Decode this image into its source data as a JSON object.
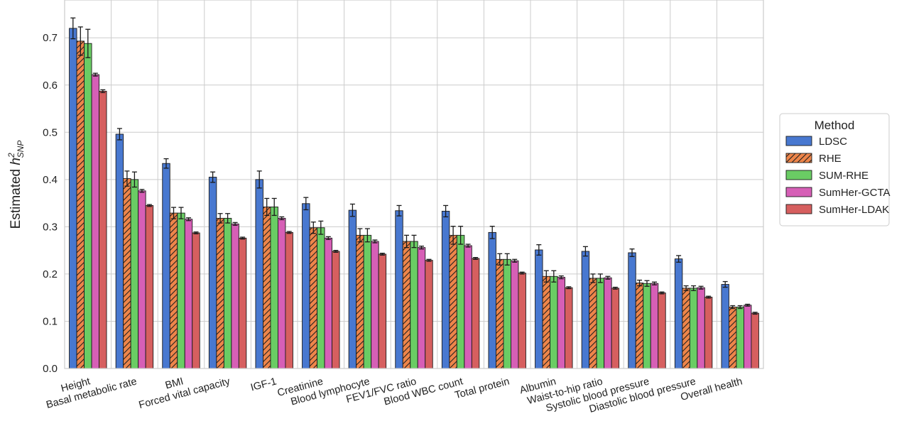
{
  "chart_data": {
    "type": "bar",
    "ylabel": "Estimated h²_SNP",
    "ylabel_main": "Estimated ",
    "ylabel_symbol": "h",
    "ylabel_sup": "2",
    "ylabel_sub": "SNP",
    "ylim": [
      0,
      0.78
    ],
    "yticks": [
      "0.0",
      "0.1",
      "0.2",
      "0.3",
      "0.4",
      "0.5",
      "0.6",
      "0.7"
    ],
    "grid": true,
    "legend_title": "Method",
    "legend_position": "right",
    "categories": [
      "Height",
      "Basal metabolic rate",
      "BMI",
      "Forced vital capacity",
      "IGF-1",
      "Creatinine",
      "Blood lymphocyte",
      "FEV1/FVC ratio",
      "Blood WBC count",
      "Total protein",
      "Albumin",
      "Waist-to-hip ratio",
      "Systolic blood pressure",
      "Diastolic blood pressure",
      "Overall health"
    ],
    "series": [
      {
        "name": "LDSC",
        "color": "#4878d0",
        "hatch": false,
        "values": [
          0.72,
          0.496,
          0.434,
          0.405,
          0.4,
          0.349,
          0.335,
          0.334,
          0.333,
          0.288,
          0.251,
          0.248,
          0.245,
          0.232,
          0.178
        ],
        "errors": [
          0.022,
          0.012,
          0.01,
          0.011,
          0.018,
          0.013,
          0.013,
          0.011,
          0.012,
          0.013,
          0.011,
          0.01,
          0.008,
          0.007,
          0.006
        ]
      },
      {
        "name": "RHE",
        "color": "#ee854a",
        "hatch": true,
        "values": [
          0.693,
          0.402,
          0.329,
          0.318,
          0.342,
          0.298,
          0.282,
          0.269,
          0.282,
          0.231,
          0.195,
          0.191,
          0.181,
          0.17,
          0.13
        ],
        "errors": [
          0.03,
          0.016,
          0.012,
          0.01,
          0.018,
          0.012,
          0.014,
          0.013,
          0.019,
          0.012,
          0.012,
          0.009,
          0.006,
          0.005,
          0.003
        ]
      },
      {
        "name": "SUM-RHE",
        "color": "#6acc64",
        "hatch": false,
        "values": [
          0.688,
          0.4,
          0.329,
          0.318,
          0.342,
          0.298,
          0.282,
          0.269,
          0.282,
          0.231,
          0.195,
          0.191,
          0.18,
          0.17,
          0.13
        ],
        "errors": [
          0.03,
          0.016,
          0.012,
          0.01,
          0.018,
          0.014,
          0.014,
          0.013,
          0.019,
          0.012,
          0.012,
          0.009,
          0.006,
          0.005,
          0.003
        ]
      },
      {
        "name": "SumHer-GCTA",
        "color": "#d65fb6",
        "hatch": false,
        "values": [
          0.622,
          0.376,
          0.316,
          0.306,
          0.318,
          0.276,
          0.269,
          0.256,
          0.26,
          0.228,
          0.193,
          0.192,
          0.18,
          0.171,
          0.134
        ],
        "errors": [
          0.003,
          0.003,
          0.003,
          0.003,
          0.003,
          0.003,
          0.003,
          0.003,
          0.003,
          0.003,
          0.003,
          0.003,
          0.003,
          0.003,
          0.002
        ]
      },
      {
        "name": "SumHer-LDAK",
        "color": "#d65f5f",
        "hatch": false,
        "values": [
          0.587,
          0.345,
          0.287,
          0.276,
          0.288,
          0.248,
          0.242,
          0.229,
          0.233,
          0.202,
          0.171,
          0.17,
          0.16,
          0.151,
          0.117
        ],
        "errors": [
          0.003,
          0.002,
          0.002,
          0.002,
          0.002,
          0.002,
          0.002,
          0.002,
          0.002,
          0.002,
          0.002,
          0.002,
          0.002,
          0.002,
          0.002
        ]
      }
    ]
  }
}
